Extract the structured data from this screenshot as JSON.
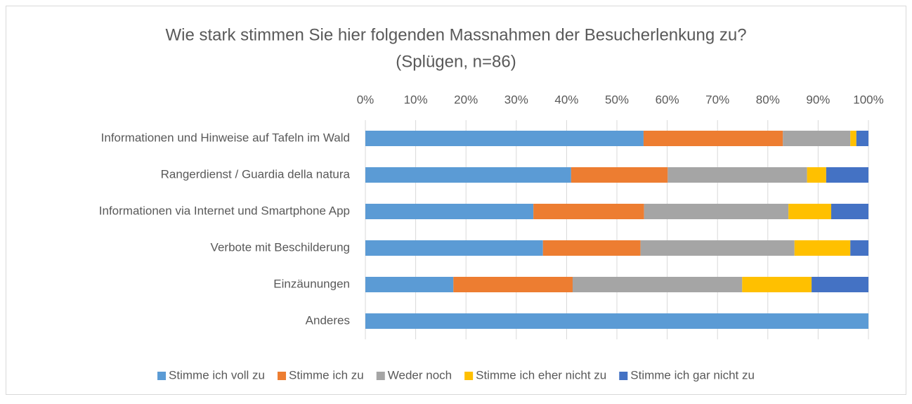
{
  "chart_data": {
    "type": "bar",
    "orientation": "horizontal",
    "stacked": true,
    "title_lines": [
      "Wie stark stimmen Sie hier folgenden Massnahmen der Besucherlenkung zu?",
      "(Splügen, n=86)"
    ],
    "categories": [
      "Informationen und Hinweise auf Tafeln im Wald",
      "Rangerdienst / Guardia della natura",
      "Informationen via Internet und Smartphone App",
      "Verbote mit Beschilderung",
      "Einzäunungen",
      "Anderes"
    ],
    "series": [
      {
        "name": "Stimme ich voll zu",
        "color": "#5b9bd5",
        "values": [
          55.3,
          40.9,
          33.4,
          35.3,
          17.5,
          100
        ]
      },
      {
        "name": "Stimme ich zu",
        "color": "#ed7d31",
        "values": [
          27.7,
          19.2,
          22.0,
          19.4,
          23.7,
          0
        ]
      },
      {
        "name": "Weder noch",
        "color": "#a5a5a5",
        "values": [
          13.4,
          27.7,
          28.7,
          30.6,
          33.7,
          0
        ]
      },
      {
        "name": "Stimme ich eher nicht zu",
        "color": "#ffc000",
        "values": [
          1.2,
          3.8,
          8.5,
          11.1,
          13.8,
          0
        ]
      },
      {
        "name": "Stimme ich gar nicht zu",
        "color": "#4472c4",
        "values": [
          2.4,
          8.4,
          7.4,
          3.6,
          11.3,
          0
        ]
      }
    ],
    "xlim": [
      0,
      100
    ],
    "xticks": [
      {
        "value": 0,
        "label": "0%"
      },
      {
        "value": 10,
        "label": "10%"
      },
      {
        "value": 20,
        "label": "20%"
      },
      {
        "value": 30,
        "label": "30%"
      },
      {
        "value": 40,
        "label": "40%"
      },
      {
        "value": 50,
        "label": "50%"
      },
      {
        "value": 60,
        "label": "60%"
      },
      {
        "value": 70,
        "label": "70%"
      },
      {
        "value": 80,
        "label": "80%"
      },
      {
        "value": 90,
        "label": "90%"
      },
      {
        "value": 100,
        "label": "100%"
      }
    ],
    "grid": true,
    "legend": "bottom"
  }
}
